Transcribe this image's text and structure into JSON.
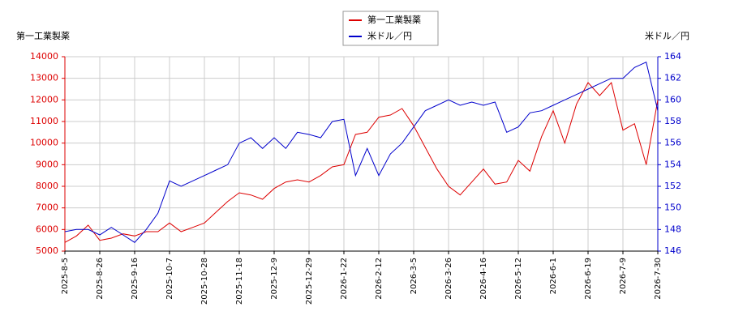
{
  "chart_data": {
    "type": "line",
    "y_label": "第一工業製薬",
    "y2_label": "米ドル／円",
    "categories": [
      "2025-8-5",
      null,
      null,
      "2025-8-26",
      null,
      null,
      "2025-9-16",
      null,
      null,
      "2025-10-7",
      null,
      null,
      "2025-10-28",
      null,
      null,
      "2025-11-18",
      null,
      null,
      "2025-12-9",
      null,
      null,
      "2025-12-29",
      null,
      null,
      "2026-1-22",
      null,
      null,
      "2026-2-12",
      null,
      null,
      "2026-3-5",
      null,
      null,
      "2026-3-26",
      null,
      null,
      "2026-4-16",
      null,
      null,
      "2026-5-12",
      null,
      null,
      "2026-6-1",
      null,
      null,
      "2026-6-19",
      null,
      null,
      "2026-7-9",
      null,
      null,
      "2026-7-30"
    ],
    "series": [
      {
        "name": "第一工業製薬",
        "color": "#dd0000",
        "axis": "y",
        "values": [
          5400,
          5700,
          6200,
          5500,
          5600,
          5800,
          5700,
          5900,
          5900,
          6300,
          5900,
          6100,
          6300,
          6800,
          7300,
          7700,
          7600,
          7400,
          7900,
          8200,
          8300,
          8200,
          8500,
          8900,
          9000,
          10400,
          10500,
          11200,
          11300,
          11600,
          10800,
          9800,
          8800,
          8000,
          7600,
          8200,
          8800,
          8100,
          8200,
          9200,
          8700,
          10300,
          11500,
          10000,
          11800,
          12800,
          12200,
          12800,
          10600,
          10900,
          9000,
          12000
        ]
      },
      {
        "name": "米ドル／円",
        "color": "#0000cc",
        "axis": "y2",
        "values": [
          147.8,
          148.0,
          148.0,
          147.5,
          148.2,
          147.5,
          146.8,
          148.0,
          149.5,
          152.5,
          152.0,
          152.5,
          153.0,
          153.5,
          154.0,
          156.0,
          156.5,
          155.5,
          156.5,
          155.5,
          157.0,
          156.8,
          156.5,
          158.0,
          158.2,
          153.0,
          155.5,
          153.0,
          155.0,
          156.0,
          157.5,
          159.0,
          159.5,
          160.0,
          159.5,
          159.8,
          159.5,
          159.8,
          157.0,
          157.5,
          158.8,
          159.0,
          159.5,
          160.0,
          160.5,
          161.0,
          161.5,
          162.0,
          162.0,
          163.0,
          163.5,
          159.0
        ]
      }
    ],
    "ylim": [
      5000,
      14000
    ],
    "yticks": [
      5000,
      6000,
      7000,
      8000,
      9000,
      10000,
      11000,
      12000,
      13000,
      14000
    ],
    "y2lim": [
      146,
      164
    ],
    "y2ticks": [
      146,
      148,
      150,
      152,
      154,
      156,
      158,
      160,
      162,
      164
    ],
    "grid": true,
    "legend": "top"
  }
}
